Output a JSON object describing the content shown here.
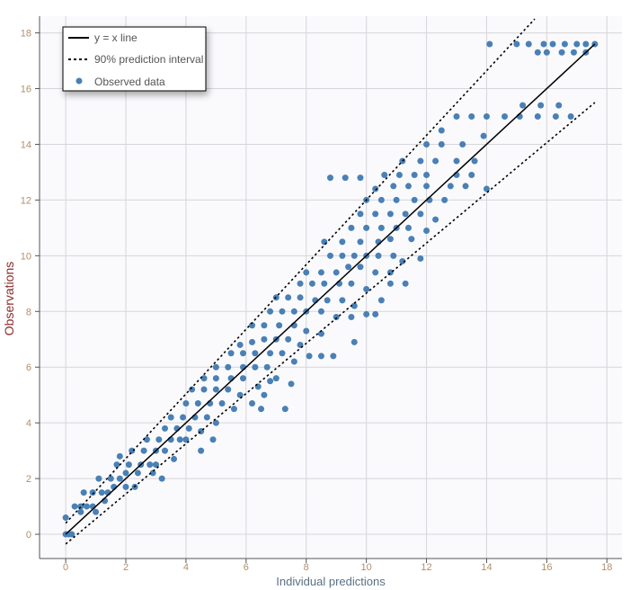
{
  "chart_data": {
    "type": "scatter",
    "title": "",
    "xlabel": "Individual predictions",
    "ylabel": "Observations",
    "xlim": [
      -0.87,
      18.5
    ],
    "ylim": [
      -0.87,
      18.6
    ],
    "xticks": [
      0,
      2,
      4,
      6,
      8,
      10,
      12,
      14,
      16,
      18
    ],
    "yticks": [
      0,
      2,
      4,
      6,
      8,
      10,
      12,
      14,
      16,
      18
    ],
    "grid": true,
    "legend_position": "top-left",
    "legend": [
      {
        "label": "y = x line",
        "style": "solid"
      },
      {
        "label": "90% prediction interval",
        "style": "dotted"
      },
      {
        "label": "Observed data",
        "style": "point"
      }
    ],
    "lines": {
      "identity": {
        "x": [
          0,
          17.6
        ],
        "y": [
          0,
          17.6
        ]
      },
      "upper_pi": {
        "x": [
          0,
          15.6
        ],
        "y": [
          0.4,
          18.5
        ]
      },
      "lower_pi": {
        "x": [
          0,
          17.6
        ],
        "y": [
          -0.35,
          15.5
        ]
      }
    },
    "colors": {
      "points": "#4a80b5",
      "lines": "#000000",
      "plot_bg": "#fafafd",
      "grid": "#d6d6da"
    },
    "points": [
      [
        0,
        0
      ],
      [
        0.1,
        0
      ],
      [
        0.2,
        0
      ],
      [
        0,
        0.6
      ],
      [
        0.3,
        1.0
      ],
      [
        0.5,
        1.0
      ],
      [
        0.7,
        1.0
      ],
      [
        0.9,
        1.0
      ],
      [
        0.6,
        1.5
      ],
      [
        0.9,
        1.5
      ],
      [
        1.2,
        1.5
      ],
      [
        1.4,
        1.5
      ],
      [
        0.5,
        0.8
      ],
      [
        1.0,
        0.8
      ],
      [
        1.3,
        1.2
      ],
      [
        1.1,
        2.0
      ],
      [
        1.5,
        2.0
      ],
      [
        1.8,
        2.0
      ],
      [
        1.6,
        1.7
      ],
      [
        2.0,
        1.7
      ],
      [
        2.3,
        1.7
      ],
      [
        1.7,
        2.5
      ],
      [
        2.1,
        2.5
      ],
      [
        2.5,
        2.5
      ],
      [
        2.8,
        2.5
      ],
      [
        2.2,
        3.0
      ],
      [
        2.6,
        3.0
      ],
      [
        3.0,
        3.0
      ],
      [
        3.3,
        3.0
      ],
      [
        2.0,
        2.2
      ],
      [
        2.4,
        2.2
      ],
      [
        2.9,
        2.2
      ],
      [
        3.2,
        2.0
      ],
      [
        2.7,
        3.4
      ],
      [
        3.1,
        3.4
      ],
      [
        3.5,
        3.4
      ],
      [
        3.8,
        3.4
      ],
      [
        3.6,
        2.7
      ],
      [
        4.0,
        3.4
      ],
      [
        3.3,
        3.8
      ],
      [
        3.7,
        3.8
      ],
      [
        4.1,
        3.8
      ],
      [
        4.5,
        3.7
      ],
      [
        4.9,
        3.4
      ],
      [
        3.5,
        4.2
      ],
      [
        3.9,
        4.2
      ],
      [
        4.3,
        4.2
      ],
      [
        4.7,
        4.2
      ],
      [
        5.0,
        4.0
      ],
      [
        4.0,
        4.7
      ],
      [
        4.4,
        4.7
      ],
      [
        4.8,
        4.7
      ],
      [
        5.2,
        4.7
      ],
      [
        5.6,
        4.5
      ],
      [
        4.2,
        5.2
      ],
      [
        4.6,
        5.2
      ],
      [
        5.0,
        5.2
      ],
      [
        5.4,
        5.2
      ],
      [
        5.8,
        5.0
      ],
      [
        6.2,
        4.7
      ],
      [
        6.5,
        4.5
      ],
      [
        7.3,
        4.5
      ],
      [
        4.6,
        5.6
      ],
      [
        5.0,
        5.6
      ],
      [
        5.5,
        5.6
      ],
      [
        5.9,
        5.6
      ],
      [
        6.4,
        5.3
      ],
      [
        6.6,
        5.0
      ],
      [
        5.0,
        6.0
      ],
      [
        5.4,
        6.0
      ],
      [
        5.9,
        6.0
      ],
      [
        6.3,
        6.0
      ],
      [
        6.7,
        6.0
      ],
      [
        7.0,
        5.6
      ],
      [
        7.5,
        5.4
      ],
      [
        5.5,
        6.5
      ],
      [
        5.9,
        6.5
      ],
      [
        6.3,
        6.5
      ],
      [
        6.8,
        6.5
      ],
      [
        7.2,
        6.5
      ],
      [
        7.6,
        6.2
      ],
      [
        8.1,
        6.4
      ],
      [
        8.5,
        6.4
      ],
      [
        8.9,
        6.4
      ],
      [
        5.8,
        6.8
      ],
      [
        6.2,
        6.9
      ],
      [
        6.6,
        7.0
      ],
      [
        7.0,
        7.0
      ],
      [
        7.4,
        7.0
      ],
      [
        7.8,
        6.8
      ],
      [
        6.2,
        7.5
      ],
      [
        6.6,
        7.5
      ],
      [
        7.1,
        7.5
      ],
      [
        7.6,
        7.5
      ],
      [
        8.0,
        7.3
      ],
      [
        8.5,
        7.2
      ],
      [
        6.8,
        8.0
      ],
      [
        7.2,
        8.0
      ],
      [
        7.6,
        8.0
      ],
      [
        8.0,
        8.0
      ],
      [
        8.5,
        8.0
      ],
      [
        9.0,
        7.8
      ],
      [
        9.5,
        7.8
      ],
      [
        10.0,
        7.9
      ],
      [
        10.3,
        7.9
      ],
      [
        7.0,
        8.5
      ],
      [
        7.4,
        8.5
      ],
      [
        7.8,
        8.5
      ],
      [
        8.3,
        8.4
      ],
      [
        8.7,
        8.4
      ],
      [
        9.2,
        8.4
      ],
      [
        9.6,
        8.2
      ],
      [
        10.5,
        8.4
      ],
      [
        7.8,
        9.0
      ],
      [
        8.2,
        9.0
      ],
      [
        8.6,
        9.0
      ],
      [
        9.1,
        9.0
      ],
      [
        9.5,
        9.0
      ],
      [
        10.0,
        8.8
      ],
      [
        10.8,
        9.0
      ],
      [
        11.3,
        9.0
      ],
      [
        8.0,
        9.4
      ],
      [
        8.5,
        9.4
      ],
      [
        9.0,
        9.4
      ],
      [
        9.4,
        9.6
      ],
      [
        9.8,
        9.6
      ],
      [
        10.3,
        9.4
      ],
      [
        10.8,
        9.4
      ],
      [
        8.8,
        10.0
      ],
      [
        9.2,
        10.0
      ],
      [
        9.6,
        10.0
      ],
      [
        10.0,
        10.0
      ],
      [
        10.4,
        10.0
      ],
      [
        10.9,
        10.0
      ],
      [
        11.2,
        9.8
      ],
      [
        11.8,
        9.9
      ],
      [
        8.6,
        10.5
      ],
      [
        9.2,
        10.5
      ],
      [
        9.8,
        10.5
      ],
      [
        10.4,
        10.5
      ],
      [
        10.8,
        10.6
      ],
      [
        11.5,
        10.6
      ],
      [
        9.5,
        11.0
      ],
      [
        10.0,
        11.0
      ],
      [
        10.5,
        11.0
      ],
      [
        11.0,
        11.0
      ],
      [
        11.4,
        11.0
      ],
      [
        12.0,
        10.9
      ],
      [
        9.8,
        11.5
      ],
      [
        10.3,
        11.5
      ],
      [
        10.8,
        11.5
      ],
      [
        11.3,
        11.5
      ],
      [
        11.8,
        11.5
      ],
      [
        12.3,
        11.3
      ],
      [
        10.0,
        12.0
      ],
      [
        10.5,
        12.0
      ],
      [
        11.0,
        12.0
      ],
      [
        11.6,
        12.0
      ],
      [
        12.1,
        12.0
      ],
      [
        12.6,
        12.0
      ],
      [
        10.3,
        12.4
      ],
      [
        10.9,
        12.5
      ],
      [
        11.4,
        12.5
      ],
      [
        12.0,
        12.5
      ],
      [
        12.8,
        12.5
      ],
      [
        13.3,
        12.5
      ],
      [
        14.0,
        12.4
      ],
      [
        8.8,
        12.8
      ],
      [
        9.3,
        12.8
      ],
      [
        9.8,
        12.8
      ],
      [
        10.6,
        12.9
      ],
      [
        11.1,
        12.9
      ],
      [
        11.6,
        12.9
      ],
      [
        12.0,
        12.9
      ],
      [
        13.0,
        12.9
      ],
      [
        13.5,
        12.9
      ],
      [
        11.2,
        13.4
      ],
      [
        11.8,
        13.4
      ],
      [
        12.3,
        13.4
      ],
      [
        13.0,
        13.4
      ],
      [
        13.6,
        13.4
      ],
      [
        12.0,
        14.0
      ],
      [
        12.5,
        14.0
      ],
      [
        13.2,
        14.0
      ],
      [
        13.9,
        14.3
      ],
      [
        12.5,
        14.5
      ],
      [
        13.0,
        15.0
      ],
      [
        13.5,
        15.0
      ],
      [
        14.0,
        15.0
      ],
      [
        14.6,
        15.0
      ],
      [
        15.1,
        15.0
      ],
      [
        15.7,
        15.0
      ],
      [
        16.3,
        15.0
      ],
      [
        16.8,
        15.0
      ],
      [
        15.2,
        15.4
      ],
      [
        15.8,
        15.4
      ],
      [
        16.4,
        15.4
      ],
      [
        14.1,
        17.6
      ],
      [
        15.0,
        17.6
      ],
      [
        15.4,
        17.6
      ],
      [
        15.9,
        17.6
      ],
      [
        16.2,
        17.6
      ],
      [
        16.6,
        17.6
      ],
      [
        17.0,
        17.6
      ],
      [
        17.3,
        17.6
      ],
      [
        17.6,
        17.6
      ],
      [
        15.7,
        17.3
      ],
      [
        16.0,
        17.3
      ],
      [
        16.5,
        17.3
      ],
      [
        16.9,
        17.3
      ],
      [
        17.3,
        17.3
      ],
      [
        1.8,
        2.8
      ],
      [
        3.0,
        2.5
      ],
      [
        4.5,
        3.0
      ],
      [
        6.8,
        5.5
      ],
      [
        9.6,
        6.9
      ]
    ]
  }
}
